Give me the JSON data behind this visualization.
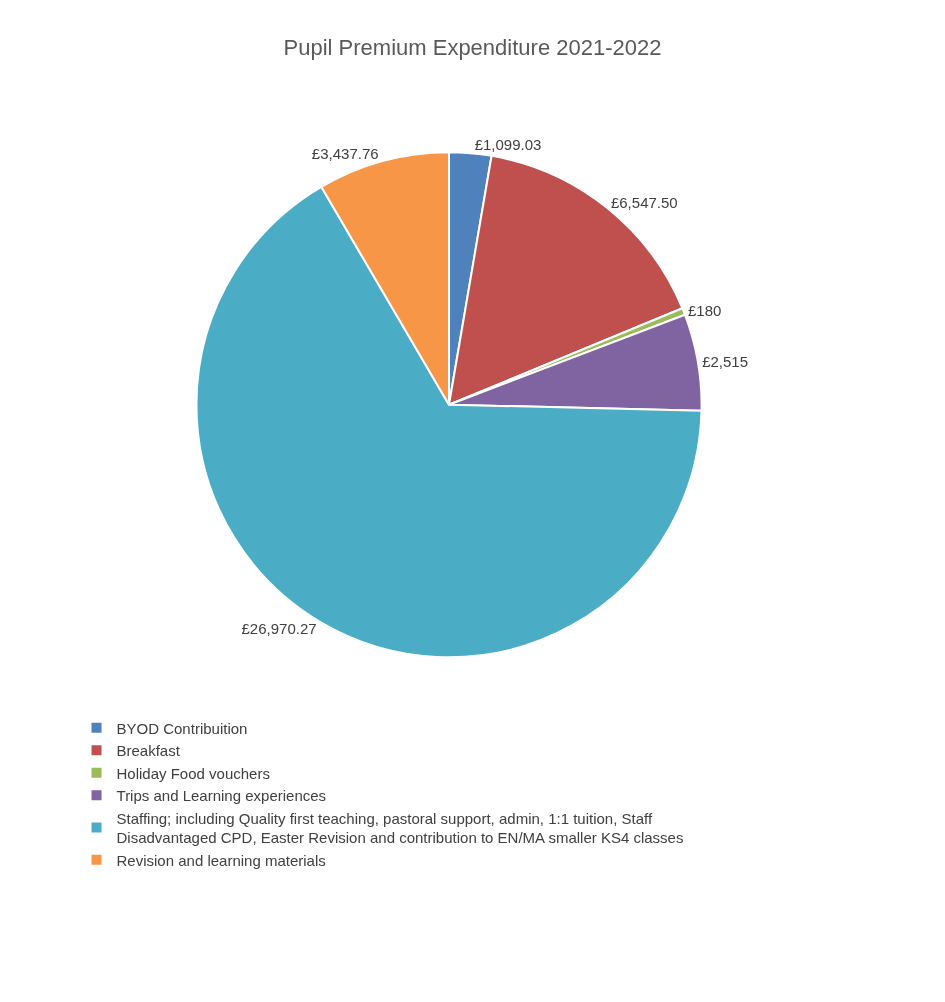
{
  "chart_data": {
    "type": "pie",
    "title": "Pupil Premium Expenditure 2021-2022",
    "categories": [
      "BYOD Contribuition",
      "Breakfast",
      "Holiday Food vouchers",
      "Trips and Learning experiences",
      "Staffing; including Quality first teaching, pastoral support, admin, 1:1 tuition, Staff Disadvantaged CPD, Easter Revision and contribution to EN/MA smaller KS4 classes",
      "Revision and learning materials"
    ],
    "values": [
      1099.03,
      6547.5,
      180,
      2515,
      26970.27,
      3437.76
    ],
    "value_labels": [
      "£1,099.03",
      "£6,547.50",
      "£180",
      "£2,515",
      "£26,970.27",
      "£3,437.76"
    ],
    "colors": [
      "#4f81bd",
      "#c0504d",
      "#9bbb59",
      "#8064a2",
      "#4bacc6",
      "#f79646"
    ],
    "legend": "bottom"
  }
}
